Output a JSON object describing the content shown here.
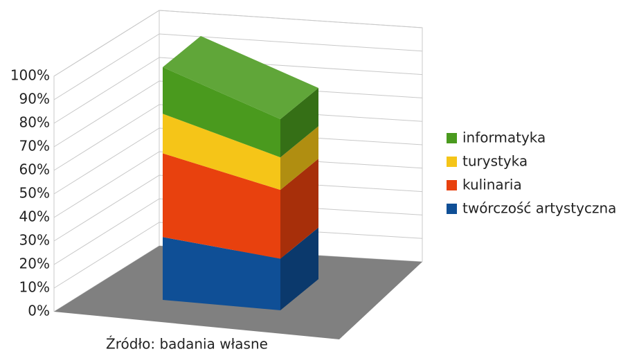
{
  "chart_data": {
    "type": "bar3d_stacked",
    "categories": [
      "Źródło: badania własne"
    ],
    "series": [
      {
        "name": "twórczość artystyczna",
        "color": "#0f4f96",
        "values": [
          27
        ]
      },
      {
        "name": "kulinaria",
        "color": "#e8410e",
        "values": [
          36
        ]
      },
      {
        "name": "turystyka",
        "color": "#f5c518",
        "values": [
          17
        ]
      },
      {
        "name": "informatyka",
        "color": "#4a9a1e",
        "values": [
          20
        ]
      }
    ],
    "ylim": [
      0,
      100
    ],
    "yticks": [
      {
        "value": 0,
        "label": "0%"
      },
      {
        "value": 10,
        "label": "10%"
      },
      {
        "value": 20,
        "label": "20%"
      },
      {
        "value": 30,
        "label": "30%"
      },
      {
        "value": 40,
        "label": "40%"
      },
      {
        "value": 50,
        "label": "50%"
      },
      {
        "value": 60,
        "label": "60%"
      },
      {
        "value": 70,
        "label": "70%"
      },
      {
        "value": 80,
        "label": "80%"
      },
      {
        "value": 90,
        "label": "90%"
      },
      {
        "value": 100,
        "label": "100%"
      }
    ],
    "grid": true,
    "legend": "right"
  }
}
